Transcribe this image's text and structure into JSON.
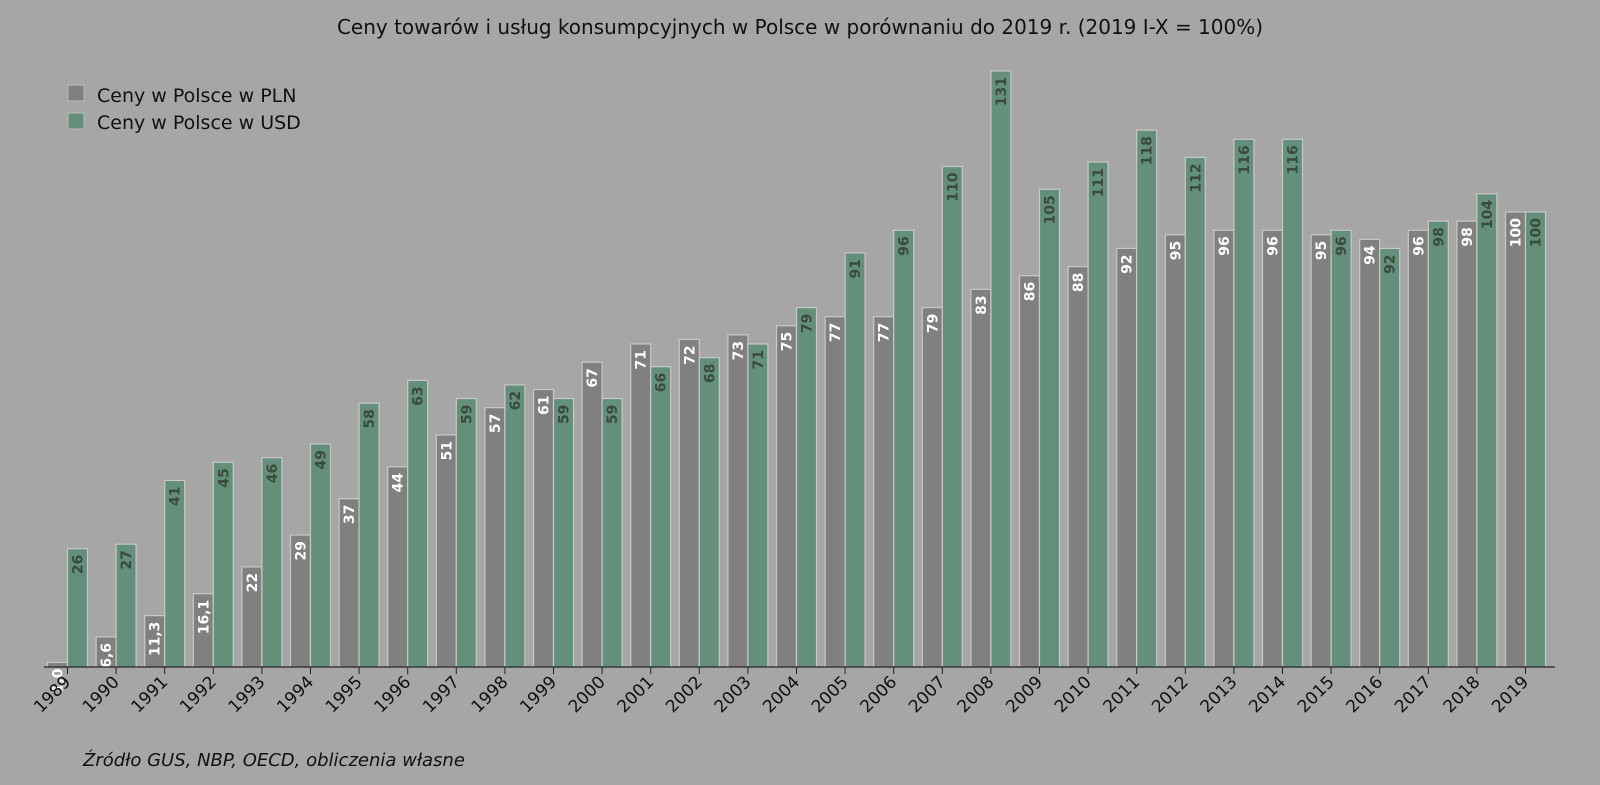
{
  "chart_data": {
    "type": "bar",
    "title": "Ceny towarów i usług konsumpcyjnych w Polsce w porównaniu do 2019 r. (2019 I-X = 100%)",
    "categories": [
      "1989",
      "1990",
      "1991",
      "1992",
      "1993",
      "1994",
      "1995",
      "1996",
      "1997",
      "1998",
      "1999",
      "2000",
      "2001",
      "2002",
      "2003",
      "2004",
      "2005",
      "2006",
      "2007",
      "2008",
      "2009",
      "2010",
      "2011",
      "2012",
      "2013",
      "2014",
      "2015",
      "2016",
      "2017",
      "2018",
      "2019"
    ],
    "series": [
      {
        "name": "Ceny w Polsce w PLN",
        "color": "#808080",
        "label_color": "#ffffff",
        "values": [
          1.0,
          6.6,
          11.3,
          16.1,
          22,
          29,
          37,
          44,
          51,
          57,
          61,
          67,
          71,
          72,
          73,
          75,
          77,
          77,
          79,
          83,
          86,
          88,
          92,
          95,
          96,
          96,
          95,
          94,
          96,
          98,
          100
        ],
        "labels": [
          "1,0",
          "6,6",
          "11,3",
          "16,1",
          "22",
          "29",
          "37",
          "44",
          "51",
          "57",
          "61",
          "67",
          "71",
          "72",
          "73",
          "75",
          "77",
          "77",
          "79",
          "83",
          "86",
          "88",
          "92",
          "95",
          "96",
          "96",
          "95",
          "94",
          "96",
          "98",
          "100"
        ]
      },
      {
        "name": "Ceny w Polsce w USD",
        "color": "#638f7b",
        "label_color": "#3a4a3f",
        "values": [
          26,
          27,
          41,
          45,
          46,
          49,
          58,
          63,
          59,
          62,
          59,
          59,
          66,
          68,
          71,
          79,
          91,
          96,
          110,
          131,
          105,
          111,
          118,
          112,
          116,
          116,
          96,
          92,
          98,
          104,
          100
        ],
        "labels": [
          "26",
          "27",
          "41",
          "45",
          "46",
          "49",
          "58",
          "63",
          "59",
          "62",
          "59",
          "59",
          "66",
          "68",
          "71",
          "79",
          "91",
          "96",
          "110",
          "131",
          "105",
          "111",
          "118",
          "112",
          "116",
          "116",
          "96",
          "92",
          "98",
          "104",
          "100"
        ]
      }
    ],
    "ylim": [
      0,
      131
    ],
    "xlabel": "",
    "ylabel": "",
    "grid": false,
    "legend_position": "top-left"
  },
  "source": "Źródło GUS, NBP, OECD, obliczenia własne"
}
